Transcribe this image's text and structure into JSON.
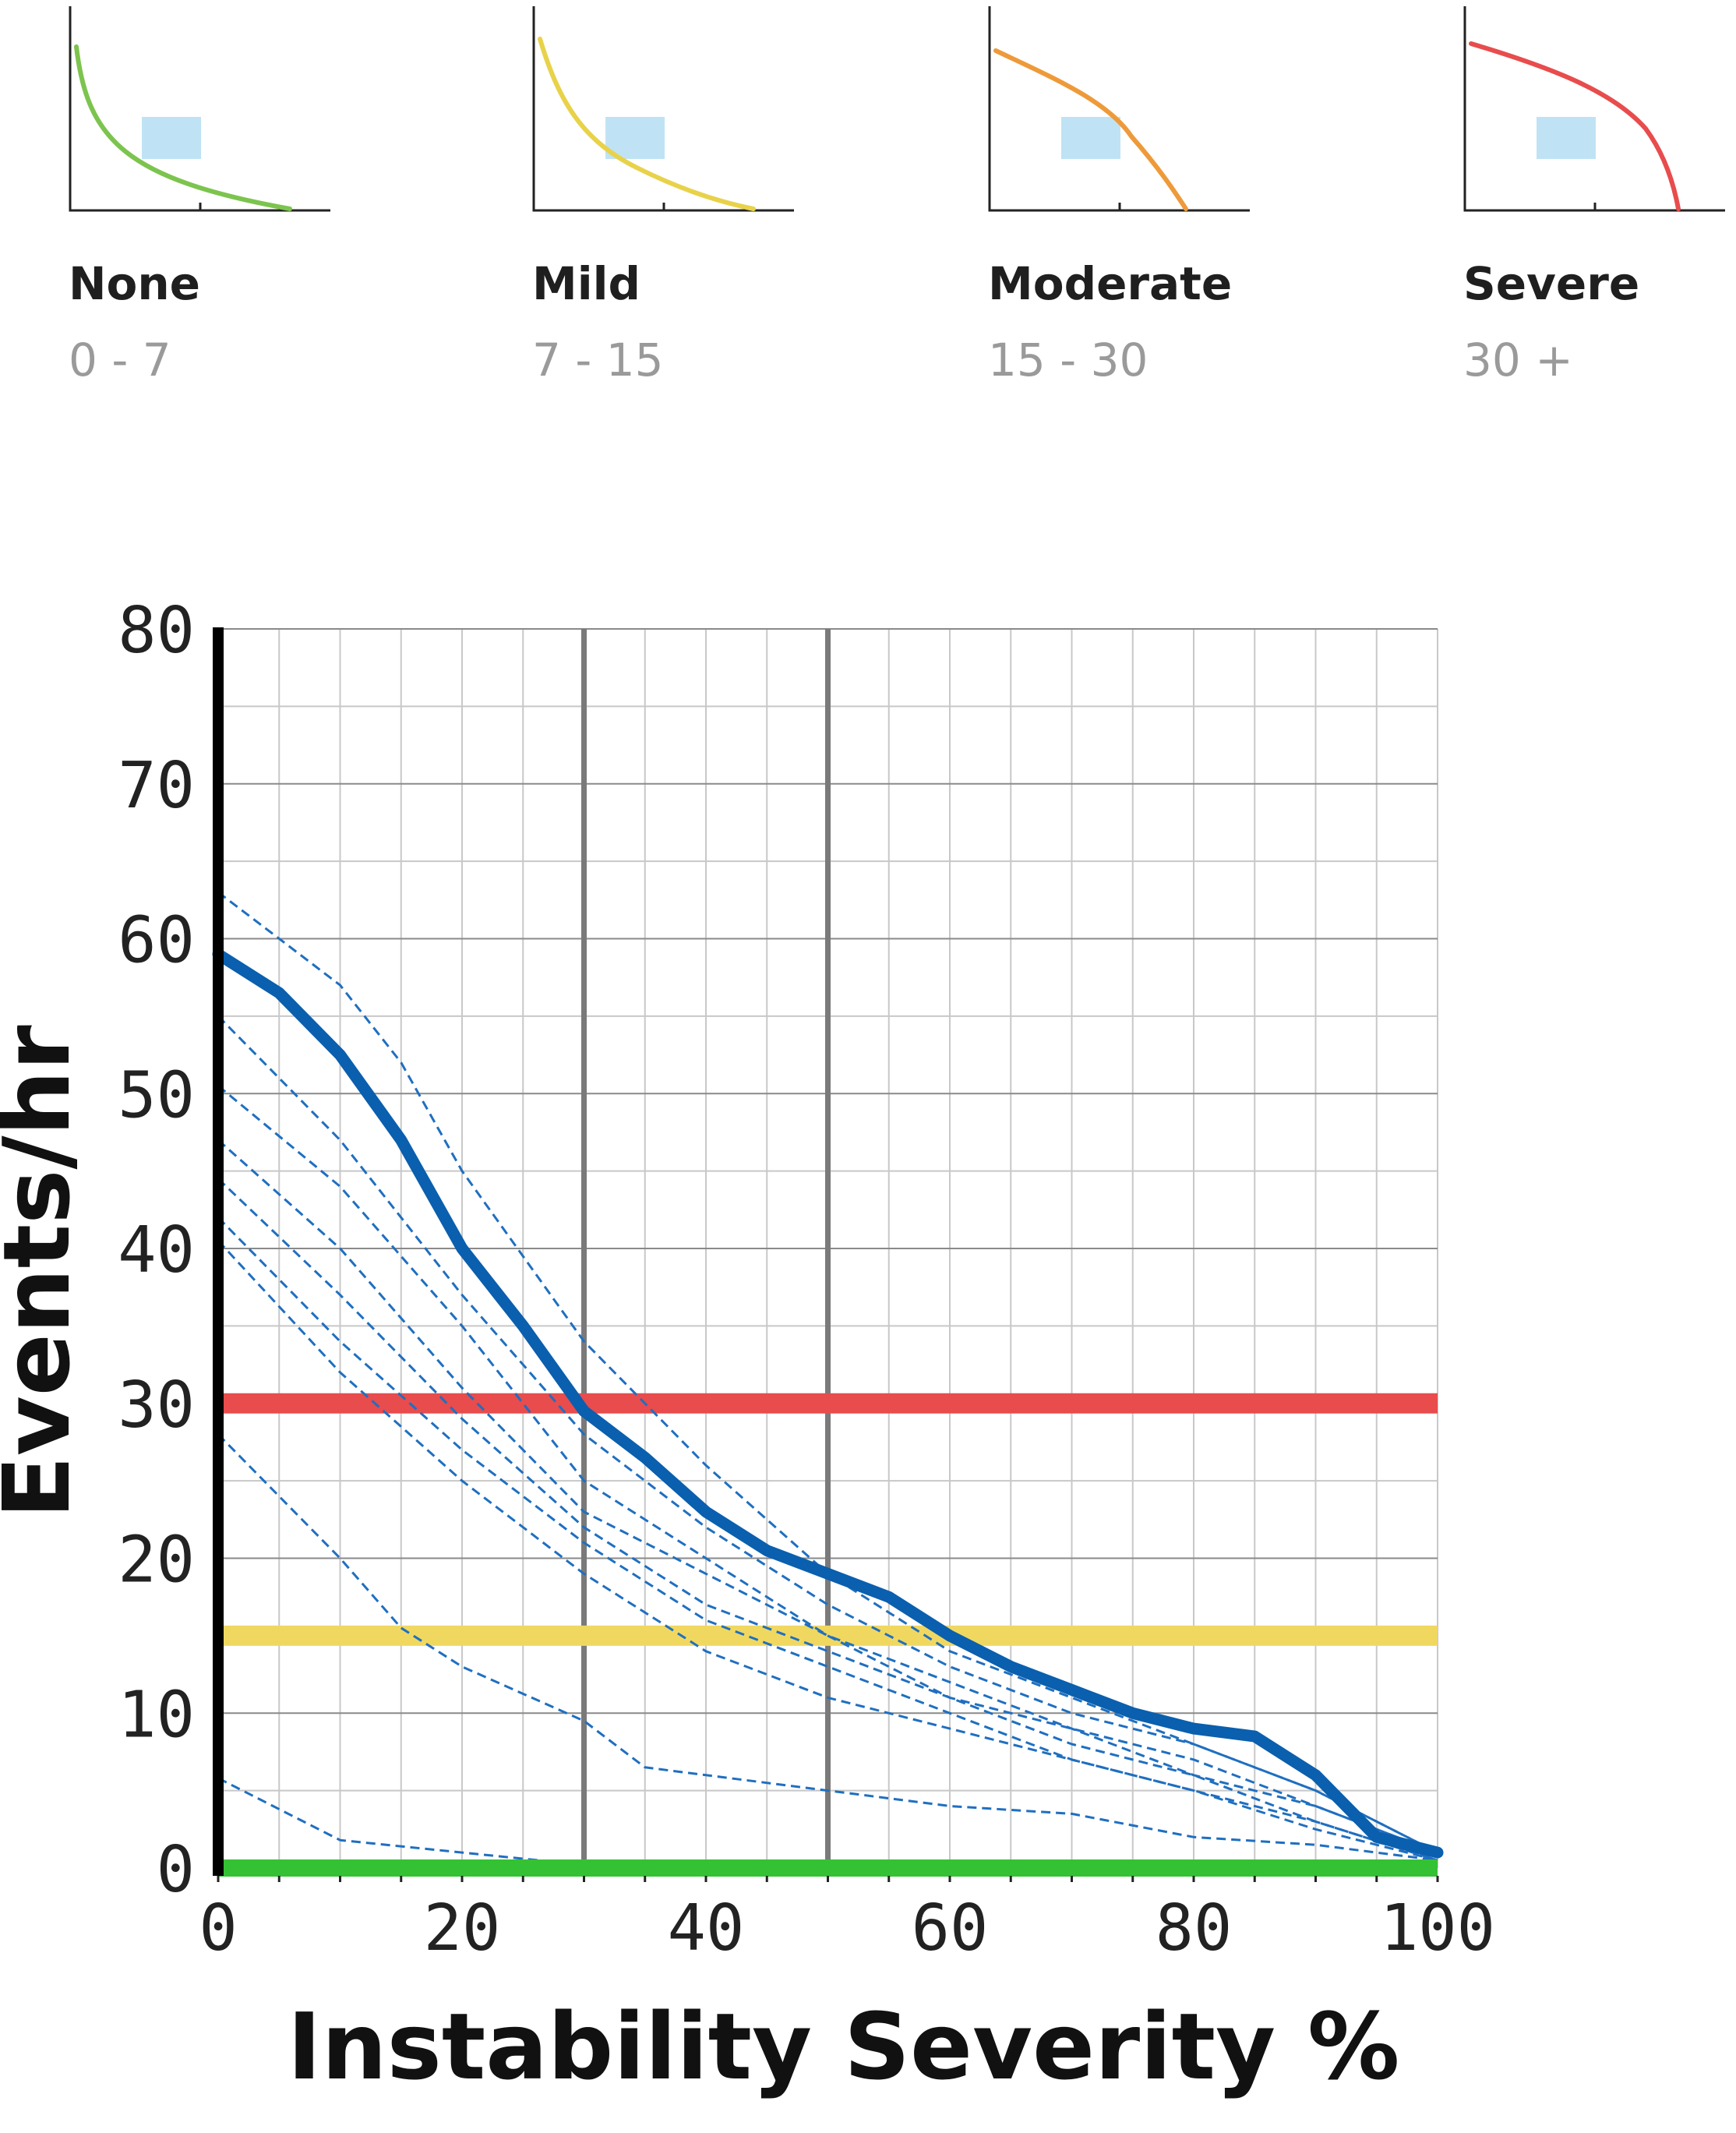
{
  "legend": [
    {
      "name": "None",
      "range": "0 - 7",
      "color": "#7cc44e"
    },
    {
      "name": "Mild",
      "range": "7 - 15",
      "color": "#e8d24a"
    },
    {
      "name": "Moderate",
      "range": "15 - 30",
      "color": "#ee9a3a"
    },
    {
      "name": "Severe",
      "range": "30 +",
      "color": "#e84c4c"
    }
  ],
  "legend_box_color": "#bfe3f4",
  "chart_data": {
    "type": "line",
    "title": "",
    "xlabel": "Instability Severity %",
    "ylabel": "Events/hr",
    "xlim": [
      0,
      100
    ],
    "ylim": [
      0,
      80
    ],
    "xticks": [
      0,
      20,
      40,
      60,
      80,
      100
    ],
    "yticks": [
      0,
      10,
      20,
      30,
      40,
      50,
      60,
      70,
      80
    ],
    "grid": true,
    "vertical_markers": [
      30,
      50
    ],
    "thresholds": [
      {
        "y": 30,
        "color": "#e84c4c"
      },
      {
        "y": 15,
        "color": "#f0d860"
      },
      {
        "y": 0,
        "color": "#34c234"
      }
    ],
    "main_series": {
      "color": "#0a5fae",
      "x": [
        0,
        5,
        10,
        15,
        20,
        25,
        30,
        35,
        40,
        45,
        50,
        55,
        60,
        65,
        70,
        75,
        80,
        85,
        90,
        95,
        100
      ],
      "y": [
        59,
        56.5,
        52.5,
        47,
        40,
        35,
        29.5,
        26.5,
        23,
        20.5,
        19,
        17.5,
        15,
        13,
        11.5,
        10,
        9,
        8.5,
        6,
        2,
        1
      ]
    },
    "dashed_color": "#1f6fc0",
    "dashed_series": [
      {
        "x": [
          0,
          10,
          15,
          20,
          30,
          40,
          50,
          60,
          70,
          80,
          90,
          100
        ],
        "y": [
          63,
          57,
          52,
          45,
          34,
          26,
          19,
          14,
          11,
          8,
          5,
          1
        ]
      },
      {
        "x": [
          0,
          10,
          20,
          30,
          40,
          50,
          60,
          70,
          80,
          90,
          100
        ],
        "y": [
          55,
          47,
          37,
          28,
          22,
          17,
          13,
          10,
          8,
          5,
          1
        ]
      },
      {
        "x": [
          0,
          10,
          20,
          30,
          40,
          50,
          60,
          70,
          80,
          90,
          100
        ],
        "y": [
          50.5,
          44,
          35,
          25,
          20,
          15,
          11,
          9,
          7,
          4,
          1
        ]
      },
      {
        "x": [
          0,
          10,
          20,
          30,
          40,
          50,
          60,
          70,
          80,
          90,
          100
        ],
        "y": [
          47,
          40,
          31,
          23,
          19,
          15,
          12,
          9,
          6,
          4,
          1
        ]
      },
      {
        "x": [
          0,
          10,
          20,
          30,
          40,
          50,
          60,
          70,
          80,
          90,
          100
        ],
        "y": [
          44.5,
          37,
          29,
          22,
          17,
          14,
          11,
          8,
          6,
          3,
          0.5
        ]
      },
      {
        "x": [
          0,
          10,
          20,
          30,
          40,
          50,
          60,
          70,
          80,
          90,
          100
        ],
        "y": [
          42,
          34,
          27,
          21,
          16,
          13,
          10,
          7,
          5,
          3,
          0.5
        ]
      },
      {
        "x": [
          0,
          10,
          20,
          30,
          40,
          50,
          60,
          70,
          80,
          90,
          100
        ],
        "y": [
          40.5,
          32,
          25,
          19,
          14,
          11,
          9,
          7,
          5,
          2.5,
          0.5
        ]
      },
      {
        "x": [
          0,
          10,
          15,
          20,
          30,
          35,
          40,
          50,
          60,
          70,
          80,
          90,
          100
        ],
        "y": [
          28,
          20,
          15.5,
          13,
          9.5,
          6.5,
          6,
          5,
          4,
          3.5,
          2,
          1.5,
          0.5
        ]
      },
      {
        "x": [
          0,
          10,
          20,
          30
        ],
        "y": [
          5.8,
          1.8,
          1,
          0.2
        ]
      }
    ]
  }
}
